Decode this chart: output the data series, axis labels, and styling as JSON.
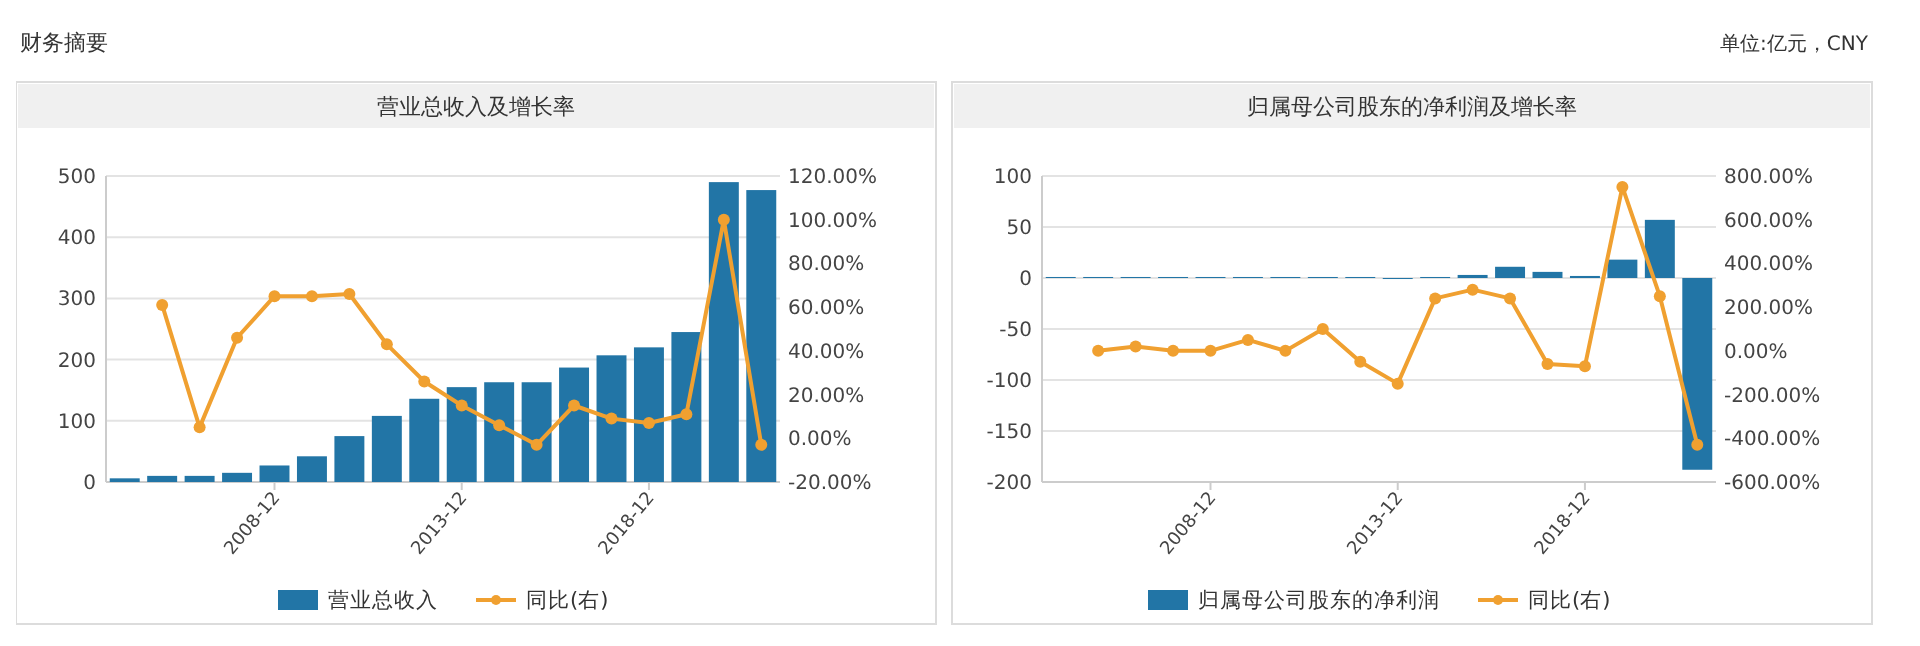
{
  "chart_data": [
    {
      "type": "bar",
      "title": "营业总收入及增长率",
      "annotations": [
        "财务摘要"
      ],
      "categories": [
        null,
        null,
        null,
        null,
        "2008-12",
        null,
        null,
        null,
        null,
        "2013-12",
        null,
        null,
        null,
        null,
        "2018-12",
        null,
        null,
        null
      ],
      "series": [
        {
          "name": "营业总收入",
          "color": "#2275a6",
          "values": [
            6,
            10,
            10,
            15,
            27,
            42,
            75,
            108,
            136,
            155,
            163,
            163,
            187,
            207,
            220,
            245,
            490,
            477
          ]
        },
        {
          "name": "同比(右)",
          "type": "line",
          "axis": "y2",
          "color": "#f0a030",
          "values": [
            null,
            61,
            5,
            46,
            65,
            65,
            66,
            43,
            26,
            15,
            6,
            -3,
            15,
            9,
            7,
            11,
            100,
            -3
          ]
        }
      ],
      "ylim": [
        0,
        500
      ],
      "yticks": [
        0,
        100,
        200,
        300,
        400,
        500
      ],
      "y2lim": [
        -20,
        120
      ],
      "y2ticks": [
        {
          "value": -20,
          "label": "-20.00%"
        },
        {
          "value": 0,
          "label": "0.00%"
        },
        {
          "value": 20,
          "label": "20.00%"
        },
        {
          "value": 40,
          "label": "40.00%"
        },
        {
          "value": 60,
          "label": "60.00%"
        },
        {
          "value": 80,
          "label": "80.00%"
        },
        {
          "value": 100,
          "label": "100.00%"
        },
        {
          "value": 120,
          "label": "120.00%"
        }
      ],
      "grid": "y",
      "legend": "bottom",
      "marker": "circle"
    },
    {
      "type": "bar",
      "title": "归属母公司股东的净利润及增长率",
      "annotations": [
        "单位:亿元，CNY"
      ],
      "categories": [
        null,
        null,
        null,
        null,
        "2008-12",
        null,
        null,
        null,
        null,
        "2013-12",
        null,
        null,
        null,
        null,
        "2018-12",
        null,
        null,
        null
      ],
      "series": [
        {
          "name": "归属母公司股东的净利润",
          "color": "#2275a6",
          "values": [
            1,
            1,
            1,
            1,
            1,
            1,
            1,
            1,
            1,
            -1,
            1,
            3,
            11,
            6,
            2,
            18,
            57,
            -188
          ]
        },
        {
          "name": "同比(右)",
          "type": "line",
          "axis": "y2",
          "color": "#f0a030",
          "values": [
            null,
            0,
            20,
            0,
            0,
            50,
            0,
            100,
            -50,
            -150,
            240,
            280,
            240,
            -60,
            -70,
            750,
            250,
            -430
          ]
        }
      ],
      "ylim": [
        -200,
        100
      ],
      "yticks": [
        -200,
        -150,
        -100,
        -50,
        0,
        50,
        100
      ],
      "y2lim": [
        -600,
        800
      ],
      "y2ticks": [
        {
          "value": -600,
          "label": "-600.00%"
        },
        {
          "value": -400,
          "label": "-400.00%"
        },
        {
          "value": -200,
          "label": "-200.00%"
        },
        {
          "value": 0,
          "label": "0.00%"
        },
        {
          "value": 200,
          "label": "200.00%"
        },
        {
          "value": 400,
          "label": "400.00%"
        },
        {
          "value": 600,
          "label": "600.00%"
        },
        {
          "value": 800,
          "label": "800.00%"
        }
      ],
      "grid": "y",
      "legend": "bottom",
      "marker": "circle"
    }
  ]
}
